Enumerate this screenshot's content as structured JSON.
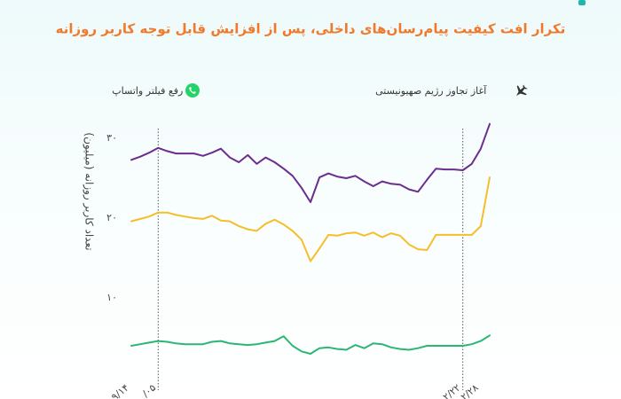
{
  "chart_data": {
    "type": "line",
    "title": "تکرار افت کیفیت پیام‌رسان‌های داخلی، پس از افزایش قابل توجه کاربر روزانه",
    "y_label": "تعداد کاربر روزانه (میلیون)",
    "ylim": [
      0,
      30
    ],
    "yticks": [
      {
        "value": 10,
        "label": "۱۰"
      },
      {
        "value": 20,
        "label": "۲۰"
      },
      {
        "value": 30,
        "label": "۳۰"
      }
    ],
    "categories": [
      "۹/۱۴",
      null,
      null,
      "/۰۵",
      null,
      null,
      null,
      null,
      null,
      null,
      null,
      null,
      null,
      null,
      null,
      null,
      null,
      null,
      null,
      null,
      null,
      null,
      null,
      null,
      null,
      null,
      null,
      null,
      null,
      null,
      null,
      null,
      null,
      null,
      null,
      null,
      null,
      "۲/۲۲",
      null,
      "۲/۲۸",
      null
    ],
    "annotations": [
      {
        "index": 3,
        "text": "رفع فیلتر واتساپ"
      },
      {
        "index": 37,
        "text": "آغاز تجاوز رژیم صهیونیستی"
      }
    ],
    "series": [
      {
        "color": "#6b2d8e",
        "values": [
          27.3,
          27.7,
          28.2,
          28.8,
          28.4,
          28.1,
          28.1,
          28.1,
          27.8,
          28.2,
          28.7,
          27.6,
          27.0,
          27.9,
          26.8,
          27.6,
          27.0,
          26.2,
          25.3,
          23.8,
          22.0,
          25.1,
          25.6,
          25.2,
          25.0,
          25.3,
          24.6,
          24.0,
          24.6,
          24.3,
          24.2,
          23.6,
          23.3,
          24.8,
          26.2,
          26.1,
          26.1,
          26.0,
          26.8,
          28.7,
          31.8
        ]
      },
      {
        "color": "#f5be2a",
        "values": [
          19.6,
          19.9,
          20.2,
          20.7,
          20.7,
          20.4,
          20.2,
          20.0,
          19.9,
          20.3,
          19.7,
          19.6,
          19.0,
          18.6,
          18.4,
          19.3,
          19.8,
          19.2,
          18.4,
          17.3,
          14.6,
          16.2,
          17.9,
          17.8,
          18.1,
          18.2,
          17.8,
          18.2,
          17.6,
          18.1,
          17.8,
          16.7,
          16.1,
          16.0,
          17.9,
          17.9,
          17.9,
          17.9,
          17.9,
          19.0,
          25.1
        ]
      },
      {
        "color": "#2bb673",
        "values": [
          4.0,
          4.2,
          4.4,
          4.6,
          4.5,
          4.3,
          4.2,
          4.2,
          4.2,
          4.5,
          4.6,
          4.3,
          4.2,
          4.1,
          4.2,
          4.4,
          4.6,
          5.2,
          4.0,
          3.3,
          3.0,
          3.7,
          3.8,
          3.6,
          3.5,
          4.1,
          3.7,
          4.3,
          4.2,
          3.8,
          3.6,
          3.5,
          3.7,
          4.0,
          4.0,
          4.0,
          4.0,
          4.0,
          4.2,
          4.6,
          5.3
        ]
      }
    ]
  }
}
